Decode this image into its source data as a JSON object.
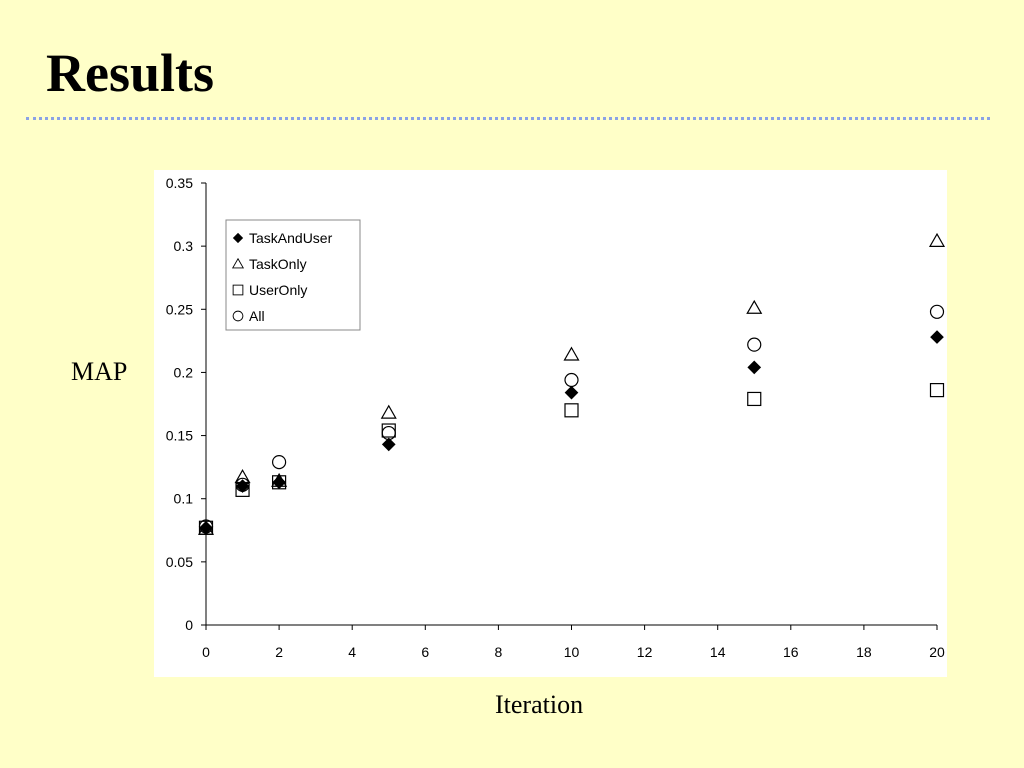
{
  "slide": {
    "title": "Results"
  },
  "chart_data": {
    "type": "scatter",
    "title": "",
    "xlabel": "Iteration",
    "ylabel": "MAP",
    "xlim": [
      0,
      20
    ],
    "ylim": [
      0,
      0.35
    ],
    "xticks": [
      0,
      2,
      4,
      6,
      8,
      10,
      12,
      14,
      16,
      18,
      20
    ],
    "yticks": [
      0,
      0.05,
      0.1,
      0.15,
      0.2,
      0.25,
      0.3,
      0.35
    ],
    "ytick_labels": [
      "0",
      "0.05",
      "0.1",
      "0.15",
      "0.2",
      "0.25",
      "0.3",
      "0.35"
    ],
    "grid": false,
    "legend_position": "top-left",
    "x": [
      0,
      1,
      2,
      5,
      10,
      15,
      20
    ],
    "series": [
      {
        "name": "TaskAndUser",
        "marker": "filled-diamond",
        "values": [
          0.077,
          0.11,
          0.113,
          0.143,
          0.184,
          0.204,
          0.228
        ]
      },
      {
        "name": "TaskOnly",
        "marker": "open-triangle",
        "values": [
          0.076,
          0.117,
          0.114,
          0.168,
          0.214,
          0.251,
          0.304
        ]
      },
      {
        "name": "UserOnly",
        "marker": "open-square",
        "values": [
          0.077,
          0.107,
          0.113,
          0.154,
          0.17,
          0.179,
          0.186
        ]
      },
      {
        "name": "All",
        "marker": "open-circle",
        "values": [
          0.078,
          0.111,
          0.129,
          0.152,
          0.194,
          0.222,
          0.248
        ]
      }
    ]
  }
}
